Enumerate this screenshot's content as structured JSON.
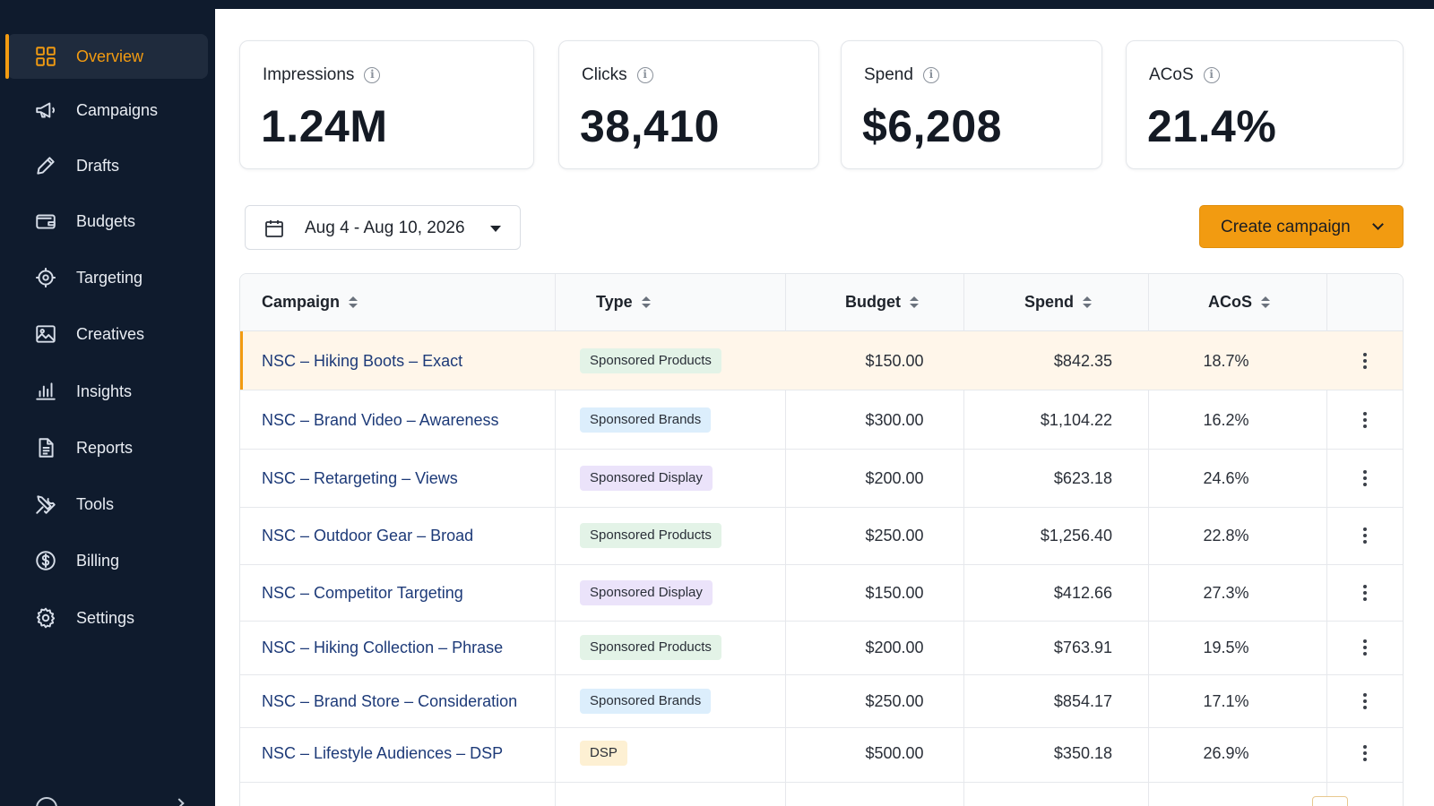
{
  "sidebar": {
    "items": [
      {
        "label": "Overview",
        "icon": "grid-icon"
      },
      {
        "label": "Campaigns",
        "icon": "megaphone-icon"
      },
      {
        "label": "Drafts",
        "icon": "pencil-icon"
      },
      {
        "label": "Budgets",
        "icon": "wallet-icon"
      },
      {
        "label": "Targeting",
        "icon": "target-icon"
      },
      {
        "label": "Creatives",
        "icon": "image-icon"
      },
      {
        "label": "Insights",
        "icon": "bar-chart-icon"
      },
      {
        "label": "Reports",
        "icon": "document-icon"
      },
      {
        "label": "Tools",
        "icon": "tools-icon"
      },
      {
        "label": "Billing",
        "icon": "dollar-circle-icon"
      },
      {
        "label": "Settings",
        "icon": "gear-icon"
      }
    ],
    "active": "Overview",
    "accent_color": "#f29b11",
    "background_color": "#0f1b2d"
  },
  "kpis": [
    {
      "label": "Impressions",
      "value": "1.24M"
    },
    {
      "label": "Clicks",
      "value": "38,410"
    },
    {
      "label": "Spend",
      "value": "$6,208"
    },
    {
      "label": "ACoS",
      "value": "21.4%"
    }
  ],
  "date_range": "Aug 4 - Aug 10, 2026",
  "create_button_label": "Create campaign",
  "table": {
    "headers": {
      "campaign": "Campaign",
      "type": "Type",
      "budget": "Budget",
      "spend": "Spend",
      "acos": "ACoS"
    },
    "rows": [
      {
        "name": "NSC – Hiking Boots – Exact",
        "type": "Sponsored Products",
        "budget": "$150.00",
        "spend": "$842.35",
        "acos": "18.7%"
      },
      {
        "name": "NSC – Brand Video – Awareness",
        "type": "Sponsored Brands",
        "budget": "$300.00",
        "spend": "$1,104.22",
        "acos": "16.2%"
      },
      {
        "name": "NSC – Retargeting – Views",
        "type": "Sponsored Display",
        "budget": "$200.00",
        "spend": "$623.18",
        "acos": "24.6%"
      },
      {
        "name": "NSC – Outdoor Gear – Broad",
        "type": "Sponsored Products",
        "budget": "$250.00",
        "spend": "$1,256.40",
        "acos": "22.8%"
      },
      {
        "name": "NSC – Competitor Targeting",
        "type": "Sponsored Display",
        "budget": "$150.00",
        "spend": "$412.66",
        "acos": "27.3%"
      },
      {
        "name": "NSC – Hiking Collection – Phrase",
        "type": "Sponsored Products",
        "budget": "$200.00",
        "spend": "$763.91",
        "acos": "19.5%"
      },
      {
        "name": "NSC – Brand Store – Consideration",
        "type": "Sponsored Brands",
        "budget": "$250.00",
        "spend": "$854.17",
        "acos": "17.1%"
      },
      {
        "name": "NSC – Lifestyle Audiences – DSP",
        "type": "DSP",
        "budget": "$500.00",
        "spend": "$350.18",
        "acos": "26.9%"
      }
    ]
  }
}
